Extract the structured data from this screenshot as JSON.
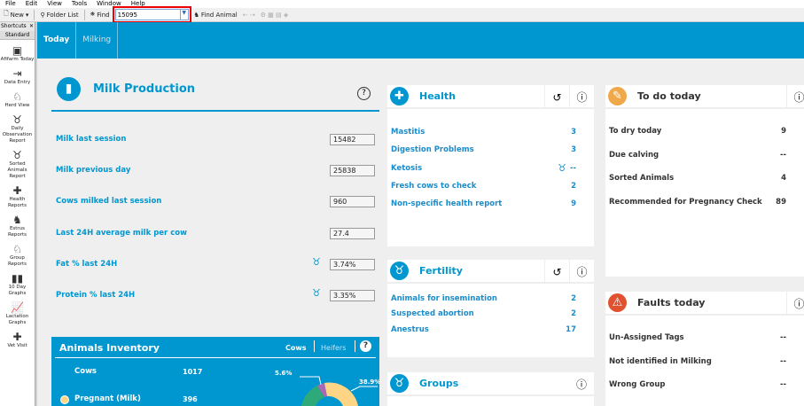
{
  "menu": [
    "File",
    "Edit",
    "View",
    "Tools",
    "Window",
    "Help"
  ],
  "toolbar": {
    "new": "New",
    "folder_list": "Folder List",
    "find": "Find",
    "search_value": "15095",
    "find_animal": "Find Animal"
  },
  "shortcuts": {
    "title": "Shortcuts",
    "tab": "Standard",
    "items": [
      {
        "label": "Afifarm Today",
        "icon": "afifarm-icon"
      },
      {
        "label": "Data Entry",
        "icon": "data-entry-icon"
      },
      {
        "label": "Herd View",
        "icon": "herd-icon"
      },
      {
        "label": "Daily Observation Report",
        "icon": "cow-icon"
      },
      {
        "label": "Sorted Animals Report",
        "icon": "sort-icon"
      },
      {
        "label": "Health Reports",
        "icon": "health-icon"
      },
      {
        "label": "Estrus Reports",
        "icon": "estrus-icon"
      },
      {
        "label": "Group Reports",
        "icon": "group-icon"
      },
      {
        "label": "10 Day Graphs",
        "icon": "bar-chart-icon"
      },
      {
        "label": "Lactation Graphs",
        "icon": "line-chart-icon"
      },
      {
        "label": "Vet Visit",
        "icon": "medkit-icon"
      }
    ]
  },
  "tabs": [
    {
      "label": "Today",
      "active": true
    },
    {
      "label": "Milking",
      "active": false
    }
  ],
  "milk": {
    "title": "Milk Production",
    "rows": [
      {
        "label": "Milk last session",
        "value": "15482"
      },
      {
        "label": "Milk previous day",
        "value": "25838"
      },
      {
        "label": "Cows milked last session",
        "value": "960"
      },
      {
        "label": "Last 24H average milk per cow",
        "value": "27.4"
      },
      {
        "label": "Fat % last 24H",
        "value": "3.74%"
      },
      {
        "label": "Protein % last 24H",
        "value": "3.35%"
      }
    ]
  },
  "inventory": {
    "title": "Animals Inventory",
    "tab_cows": "Cows",
    "tab_heifers": "Heifers",
    "rows": [
      {
        "label": "Cows",
        "value": "1017"
      },
      {
        "label": "Pregnant (Milk)",
        "value": "396",
        "color": "#fdd585"
      }
    ],
    "donut_labels": [
      "5.6%",
      "38.9%"
    ]
  },
  "health": {
    "title": "Health",
    "rows": [
      {
        "label": "Mastitis",
        "value": "3"
      },
      {
        "label": "Digestion Problems",
        "value": "3"
      },
      {
        "label": "Ketosis",
        "value": "--"
      },
      {
        "label": "Fresh cows to check",
        "value": "2"
      },
      {
        "label": "Non-specific health report",
        "value": "9"
      }
    ]
  },
  "fertility": {
    "title": "Fertility",
    "rows": [
      {
        "label": "Animals for insemination",
        "value": "2"
      },
      {
        "label": "Suspected abortion",
        "value": "2"
      },
      {
        "label": "Anestrus",
        "value": "17"
      }
    ]
  },
  "groups": {
    "title": "Groups"
  },
  "todo": {
    "title": "To do today",
    "rows": [
      {
        "label": "To dry today",
        "value": "9"
      },
      {
        "label": "Due calving",
        "value": "--"
      },
      {
        "label": "Sorted Animals",
        "value": "4"
      },
      {
        "label": "Recommended for Pregnancy Check",
        "value": "89"
      }
    ]
  },
  "faults": {
    "title": "Faults today",
    "rows": [
      {
        "label": "Un-Assigned Tags",
        "value": "--"
      },
      {
        "label": "Not identified in Milking",
        "value": "--"
      },
      {
        "label": "Wrong Group",
        "value": "--"
      }
    ]
  },
  "colors": {
    "accent": "#0096cf",
    "todo": "#f0a94a",
    "faults": "#e0522f"
  }
}
